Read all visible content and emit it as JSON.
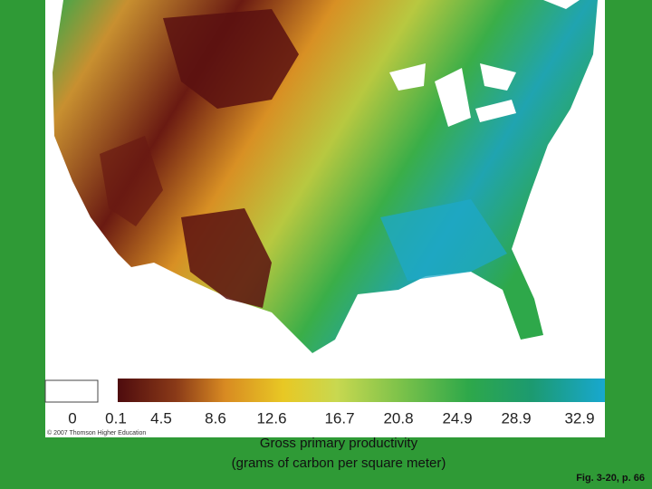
{
  "map": {
    "legend": {
      "ticks": [
        0,
        0.1,
        4.5,
        8.6,
        12.6,
        16.7,
        20.8,
        24.9,
        28.9,
        32.9
      ]
    },
    "copyright": "© 2007 Thomson Higher Education",
    "caption": {
      "line1": "Gross primary productivity",
      "line2": "(grams of carbon per square meter)"
    },
    "figure_label": "Fig. 3-20, p. 66"
  }
}
